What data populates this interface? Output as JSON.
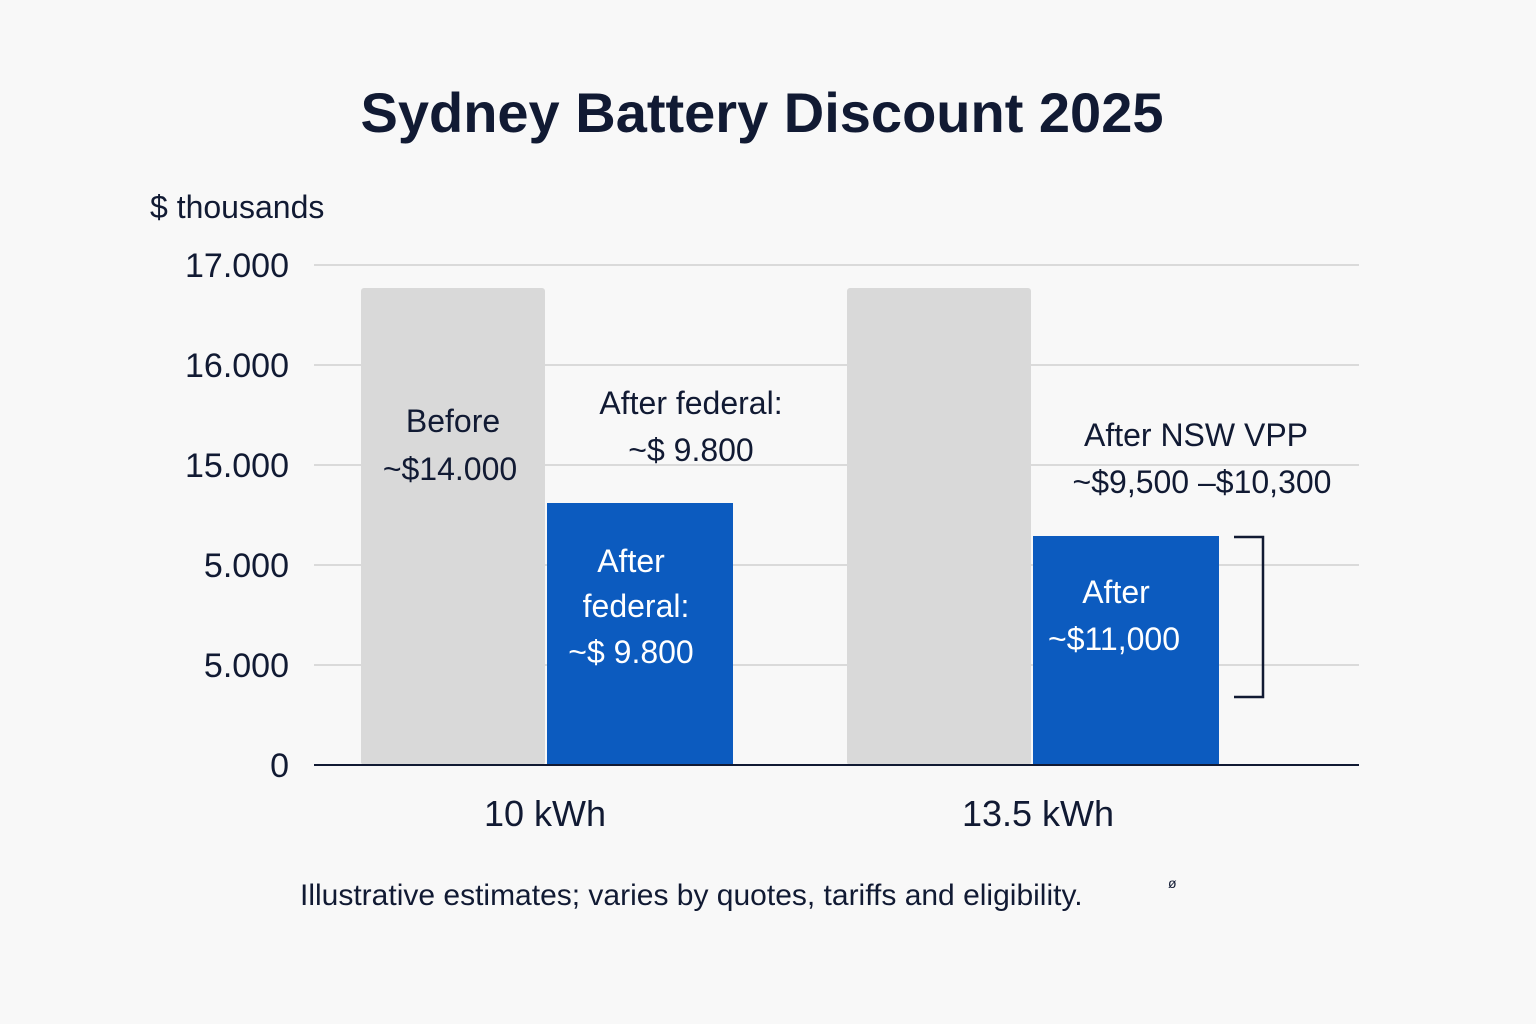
{
  "chart_data": {
    "type": "bar",
    "title": "Sydney Battery Discount 2025",
    "ylabel": "$ thousands",
    "xlabel": "",
    "categories": [
      "10 kWh",
      "13.5 kWh"
    ],
    "y_tick_labels": [
      "0",
      "5.000",
      "5.000",
      "15.000",
      "16.000",
      "17.000"
    ],
    "y_axis_note": "tick labels are evenly spaced but non-linear as printed; bar values read in grid steps",
    "grid": true,
    "series": [
      {
        "key": "before",
        "color": "#d9d9d9",
        "values_in_grid_steps": [
          4.77,
          4.77
        ]
      },
      {
        "key": "after",
        "color": "#0c5bbf",
        "values_in_grid_steps": [
          2.62,
          2.29
        ]
      }
    ],
    "bar_labels": {
      "bar1_before_line1": "Before",
      "bar1_before_line2": "~$14.000",
      "bar1_after_line1": "After",
      "bar1_after_line2": "federal:",
      "bar1_after_line3": "~$ 9.800",
      "bar2_after_line1": "After",
      "bar2_after_line2": "~$11,000"
    },
    "annotations": {
      "federal_line1": "After federal:",
      "federal_line2": "~$ 9.800",
      "nsw_line1": "After NSW VPP",
      "nsw_line2": "~$9,500 –$10,300"
    },
    "footnote": "Illustrative estimates; varies by quotes, tariffs and eligibility.",
    "colors": {
      "text": "#111a33",
      "grid": "#cfcfcf",
      "axis": "#111a33",
      "before_bar": "#d9d9d9",
      "after_bar": "#0c5bbf",
      "on_blue_text": "#ffffff",
      "background": "#f8f8f8"
    }
  }
}
